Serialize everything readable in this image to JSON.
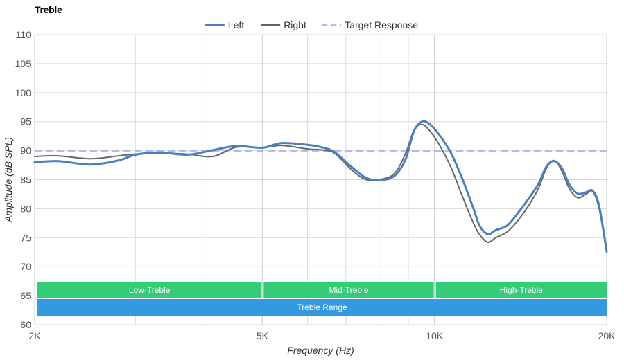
{
  "chart_data": {
    "type": "line",
    "title": "Treble",
    "xlabel": "Frequency (Hz)",
    "ylabel": "Amplitude (dB SPL)",
    "x_scale": "log",
    "xlim": [
      2000,
      20000
    ],
    "ylim": [
      60,
      110
    ],
    "x_ticks": [
      {
        "value": 2000,
        "label": "2K"
      },
      {
        "value": 5000,
        "label": "5K"
      },
      {
        "value": 10000,
        "label": "10K"
      },
      {
        "value": 20000,
        "label": "20K"
      }
    ],
    "x_minor_gridlines": [
      3000,
      4000,
      6000,
      7000,
      8000,
      9000
    ],
    "y_ticks": [
      60,
      65,
      70,
      75,
      80,
      85,
      90,
      95,
      100,
      105,
      110
    ],
    "grid": true,
    "legend_position": "top-center",
    "series": [
      {
        "name": "Left",
        "color": "#4a7fc1",
        "style": "solid",
        "width": "thick",
        "points": [
          [
            2000,
            88.0
          ],
          [
            2200,
            88.2
          ],
          [
            2500,
            87.6
          ],
          [
            2800,
            88.3
          ],
          [
            3000,
            89.3
          ],
          [
            3300,
            89.7
          ],
          [
            3700,
            89.3
          ],
          [
            4100,
            90.1
          ],
          [
            4500,
            90.8
          ],
          [
            5000,
            90.5
          ],
          [
            5400,
            91.3
          ],
          [
            6000,
            91.0
          ],
          [
            6400,
            90.5
          ],
          [
            6700,
            89.7
          ],
          [
            7200,
            87.0
          ],
          [
            7600,
            85.3
          ],
          [
            8000,
            84.9
          ],
          [
            8500,
            85.6
          ],
          [
            8900,
            88.5
          ],
          [
            9200,
            93.3
          ],
          [
            9500,
            95.0
          ],
          [
            9800,
            94.6
          ],
          [
            10200,
            92.7
          ],
          [
            10700,
            89.5
          ],
          [
            11200,
            85.0
          ],
          [
            11700,
            80.0
          ],
          [
            12000,
            77.0
          ],
          [
            12400,
            75.6
          ],
          [
            12800,
            76.3
          ],
          [
            13400,
            77.1
          ],
          [
            14000,
            79.3
          ],
          [
            14600,
            81.7
          ],
          [
            15200,
            84.3
          ],
          [
            15700,
            87.3
          ],
          [
            16200,
            88.2
          ],
          [
            16700,
            87.0
          ],
          [
            17200,
            84.2
          ],
          [
            17800,
            82.6
          ],
          [
            18400,
            82.8
          ],
          [
            18900,
            83.1
          ],
          [
            19400,
            80.5
          ],
          [
            20000,
            72.6
          ]
        ]
      },
      {
        "name": "Right",
        "color": "#666666",
        "style": "solid",
        "width": "thin",
        "points": [
          [
            2000,
            89.0
          ],
          [
            2200,
            89.1
          ],
          [
            2500,
            88.6
          ],
          [
            2800,
            89.1
          ],
          [
            3000,
            89.4
          ],
          [
            3300,
            89.6
          ],
          [
            3700,
            89.4
          ],
          [
            4100,
            89.0
          ],
          [
            4500,
            90.6
          ],
          [
            5000,
            90.5
          ],
          [
            5400,
            90.9
          ],
          [
            6000,
            90.3
          ],
          [
            6400,
            90.1
          ],
          [
            6700,
            89.5
          ],
          [
            7200,
            86.5
          ],
          [
            7600,
            85.0
          ],
          [
            8000,
            85.0
          ],
          [
            8500,
            86.0
          ],
          [
            8900,
            89.5
          ],
          [
            9200,
            93.5
          ],
          [
            9500,
            94.5
          ],
          [
            9800,
            93.5
          ],
          [
            10200,
            91.0
          ],
          [
            10700,
            87.0
          ],
          [
            11200,
            82.0
          ],
          [
            11700,
            77.5
          ],
          [
            12000,
            75.5
          ],
          [
            12400,
            74.2
          ],
          [
            12800,
            75.0
          ],
          [
            13400,
            76.0
          ],
          [
            14000,
            78.0
          ],
          [
            14600,
            80.5
          ],
          [
            15200,
            83.5
          ],
          [
            15700,
            87.0
          ],
          [
            16200,
            88.3
          ],
          [
            16700,
            86.5
          ],
          [
            17200,
            83.5
          ],
          [
            17800,
            81.9
          ],
          [
            18400,
            82.5
          ],
          [
            18900,
            83.0
          ],
          [
            19400,
            80.0
          ],
          [
            20000,
            72.5
          ]
        ]
      },
      {
        "name": "Target Response",
        "color": "#b8b8f5",
        "style": "dashed",
        "width": "thick",
        "points": [
          [
            2000,
            90
          ],
          [
            20000,
            90
          ]
        ]
      }
    ],
    "bands": [
      {
        "label": "Low-Treble",
        "from": 2000,
        "to": 5000,
        "color": "#33cc77",
        "row": 1
      },
      {
        "label": "Mid-Treble",
        "from": 5000,
        "to": 10000,
        "color": "#33cc77",
        "row": 1
      },
      {
        "label": "High-Treble",
        "from": 10000,
        "to": 20000,
        "color": "#33cc77",
        "row": 1
      },
      {
        "label": "Treble Range",
        "from": 2000,
        "to": 20000,
        "color": "#3399e0",
        "row": 2
      }
    ]
  }
}
